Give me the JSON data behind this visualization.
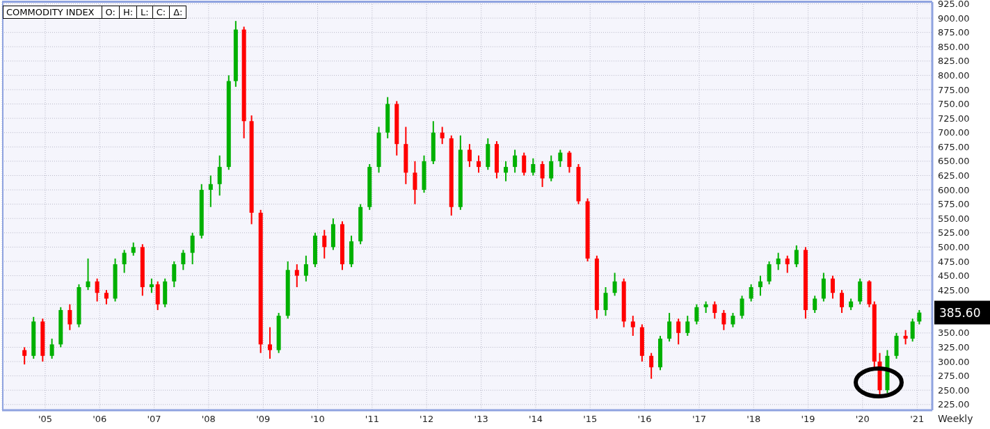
{
  "chart_data": {
    "type": "candlestick",
    "title": "COMMODITY INDEX",
    "annotations": [
      "O:",
      "H:",
      "L:",
      "C:",
      "Δ:",
      "Weekly",
      {
        "text": "385.60",
        "x": "2021-01-15",
        "y": 385.6
      }
    ],
    "x": [
      "2004-08-15",
      "2004-10-15",
      "2004-12-15",
      "2005-02-15",
      "2005-04-15",
      "2005-06-15",
      "2005-08-15",
      "2005-10-15",
      "2005-12-15",
      "2006-02-15",
      "2006-04-15",
      "2006-06-15",
      "2006-08-15",
      "2006-10-15",
      "2006-12-15",
      "2007-01-25",
      "2007-03-15",
      "2007-05-15",
      "2007-07-15",
      "2007-09-15",
      "2007-11-15",
      "2008-01-15",
      "2008-03-15",
      "2008-05-15",
      "2008-07-01",
      "2008-08-25",
      "2008-10-15",
      "2008-12-15",
      "2009-02-15",
      "2009-04-15",
      "2009-06-15",
      "2009-08-15",
      "2009-10-15",
      "2009-12-15",
      "2010-02-15",
      "2010-04-15",
      "2010-06-15",
      "2010-08-15",
      "2010-10-15",
      "2010-12-15",
      "2011-02-15",
      "2011-04-15",
      "2011-06-15",
      "2011-08-15",
      "2011-10-15",
      "2011-12-15",
      "2012-02-15",
      "2012-04-15",
      "2012-06-15",
      "2012-08-15",
      "2012-10-15",
      "2012-12-15",
      "2013-02-15",
      "2013-04-15",
      "2013-06-15",
      "2013-08-15",
      "2013-10-15",
      "2013-12-15",
      "2014-02-15",
      "2014-04-15",
      "2014-06-15",
      "2014-08-15",
      "2014-10-15",
      "2014-12-15",
      "2015-02-15",
      "2015-04-15",
      "2015-06-15",
      "2015-08-15",
      "2015-10-15",
      "2015-12-15",
      "2016-02-15",
      "2016-04-15",
      "2016-06-15",
      "2016-08-15",
      "2016-10-15",
      "2016-12-15",
      "2017-02-15",
      "2017-04-15",
      "2017-06-15",
      "2017-08-15",
      "2017-10-15",
      "2017-12-15",
      "2018-02-15",
      "2018-04-15",
      "2018-06-15",
      "2018-08-15",
      "2018-10-15",
      "2018-12-15",
      "2019-02-15",
      "2019-04-15",
      "2019-06-15",
      "2019-08-15",
      "2019-10-15",
      "2019-12-15",
      "2020-02-15",
      "2020-03-20",
      "2020-04-25",
      "2020-06-15",
      "2020-08-15",
      "2020-10-15",
      "2020-12-01",
      "2021-01-15"
    ],
    "ohlc": [
      [
        320,
        325,
        295,
        310
      ],
      [
        310,
        378,
        305,
        370
      ],
      [
        370,
        375,
        300,
        310
      ],
      [
        310,
        340,
        305,
        330
      ],
      [
        330,
        395,
        325,
        390
      ],
      [
        390,
        400,
        355,
        365
      ],
      [
        365,
        435,
        360,
        430
      ],
      [
        430,
        480,
        425,
        440
      ],
      [
        440,
        445,
        405,
        420
      ],
      [
        420,
        425,
        400,
        410
      ],
      [
        410,
        480,
        405,
        470
      ],
      [
        470,
        495,
        455,
        490
      ],
      [
        490,
        508,
        485,
        500
      ],
      [
        500,
        505,
        415,
        430
      ],
      [
        430,
        445,
        420,
        435
      ],
      [
        435,
        440,
        390,
        400
      ],
      [
        400,
        445,
        395,
        440
      ],
      [
        440,
        475,
        430,
        470
      ],
      [
        470,
        495,
        460,
        490
      ],
      [
        490,
        525,
        470,
        520
      ],
      [
        520,
        610,
        515,
        600
      ],
      [
        600,
        625,
        570,
        610
      ],
      [
        610,
        660,
        590,
        640
      ],
      [
        640,
        800,
        635,
        790
      ],
      [
        790,
        895,
        780,
        880
      ],
      [
        880,
        885,
        690,
        720
      ],
      [
        720,
        730,
        540,
        560
      ],
      [
        560,
        565,
        315,
        330
      ],
      [
        330,
        360,
        305,
        320
      ],
      [
        320,
        385,
        315,
        380
      ],
      [
        380,
        475,
        375,
        460
      ],
      [
        460,
        470,
        430,
        450
      ],
      [
        450,
        485,
        440,
        470
      ],
      [
        470,
        525,
        465,
        520
      ],
      [
        520,
        530,
        480,
        500
      ],
      [
        500,
        550,
        495,
        540
      ],
      [
        540,
        545,
        460,
        470
      ],
      [
        470,
        520,
        465,
        510
      ],
      [
        510,
        575,
        505,
        570
      ],
      [
        570,
        645,
        565,
        640
      ],
      [
        640,
        710,
        630,
        700
      ],
      [
        700,
        762,
        690,
        750
      ],
      [
        750,
        755,
        660,
        680
      ],
      [
        680,
        710,
        610,
        630
      ],
      [
        630,
        650,
        575,
        600
      ],
      [
        600,
        660,
        595,
        650
      ],
      [
        650,
        720,
        645,
        700
      ],
      [
        700,
        710,
        680,
        690
      ],
      [
        690,
        695,
        555,
        570
      ],
      [
        570,
        695,
        565,
        670
      ],
      [
        670,
        680,
        640,
        650
      ],
      [
        650,
        660,
        630,
        640
      ],
      [
        640,
        690,
        635,
        680
      ],
      [
        680,
        685,
        620,
        630
      ],
      [
        630,
        650,
        615,
        640
      ],
      [
        640,
        670,
        630,
        660
      ],
      [
        660,
        665,
        625,
        630
      ],
      [
        630,
        655,
        625,
        645
      ],
      [
        645,
        650,
        605,
        620
      ],
      [
        620,
        660,
        615,
        650
      ],
      [
        650,
        670,
        640,
        665
      ],
      [
        665,
        668,
        630,
        640
      ],
      [
        640,
        645,
        575,
        580
      ],
      [
        580,
        585,
        475,
        480
      ],
      [
        480,
        485,
        375,
        390
      ],
      [
        390,
        430,
        380,
        420
      ],
      [
        420,
        455,
        415,
        440
      ],
      [
        440,
        445,
        360,
        370
      ],
      [
        370,
        380,
        345,
        360
      ],
      [
        360,
        365,
        300,
        310
      ],
      [
        310,
        315,
        270,
        290
      ],
      [
        290,
        345,
        285,
        340
      ],
      [
        340,
        385,
        335,
        370
      ],
      [
        370,
        375,
        330,
        350
      ],
      [
        350,
        380,
        345,
        370
      ],
      [
        370,
        400,
        365,
        395
      ],
      [
        395,
        405,
        385,
        400
      ],
      [
        400,
        405,
        375,
        385
      ],
      [
        385,
        390,
        355,
        365
      ],
      [
        365,
        385,
        360,
        380
      ],
      [
        380,
        415,
        375,
        410
      ],
      [
        410,
        435,
        405,
        430
      ],
      [
        430,
        450,
        415,
        440
      ],
      [
        440,
        475,
        435,
        470
      ],
      [
        470,
        490,
        460,
        480
      ],
      [
        480,
        485,
        455,
        470
      ],
      [
        470,
        503,
        465,
        495
      ],
      [
        495,
        500,
        375,
        390
      ],
      [
        390,
        415,
        385,
        410
      ],
      [
        410,
        455,
        405,
        445
      ],
      [
        445,
        450,
        410,
        420
      ],
      [
        420,
        425,
        385,
        395
      ],
      [
        395,
        410,
        390,
        405
      ],
      [
        405,
        445,
        400,
        440
      ],
      [
        440,
        442,
        395,
        400
      ],
      [
        400,
        405,
        290,
        300
      ],
      [
        300,
        315,
        240,
        250
      ],
      [
        250,
        320,
        245,
        310
      ],
      [
        310,
        350,
        305,
        345
      ],
      [
        345,
        355,
        330,
        340
      ],
      [
        340,
        375,
        335,
        370
      ],
      [
        370,
        390,
        365,
        385.6
      ]
    ],
    "colors": [
      "#ff0000",
      "#00b000",
      "#ff0000",
      "#00b000",
      "#00b000",
      "#ff0000",
      "#00b000",
      "#00b000",
      "#ff0000",
      "#ff0000",
      "#00b000",
      "#00b000",
      "#00b000",
      "#ff0000",
      "#00b000",
      "#ff0000",
      "#00b000",
      "#00b000",
      "#00b000",
      "#00b000",
      "#00b000",
      "#00b000",
      "#00b000",
      "#00b000",
      "#00b000",
      "#ff0000",
      "#ff0000",
      "#ff0000",
      "#ff0000",
      "#00b000",
      "#00b000",
      "#ff0000",
      "#00b000",
      "#00b000",
      "#ff0000",
      "#00b000",
      "#ff0000",
      "#00b000",
      "#00b000",
      "#00b000",
      "#00b000",
      "#00b000",
      "#ff0000",
      "#ff0000",
      "#ff0000",
      "#00b000",
      "#00b000",
      "#ff0000",
      "#ff0000",
      "#00b000",
      "#ff0000",
      "#ff0000",
      "#00b000",
      "#ff0000",
      "#00b000",
      "#00b000",
      "#ff0000",
      "#00b000",
      "#ff0000",
      "#00b000",
      "#00b000",
      "#ff0000",
      "#ff0000",
      "#ff0000",
      "#ff0000",
      "#00b000",
      "#00b000",
      "#ff0000",
      "#ff0000",
      "#ff0000",
      "#ff0000",
      "#00b000",
      "#00b000",
      "#ff0000",
      "#00b000",
      "#00b000",
      "#00b000",
      "#ff0000",
      "#ff0000",
      "#00b000",
      "#00b000",
      "#00b000",
      "#00b000",
      "#00b000",
      "#00b000",
      "#ff0000",
      "#00b000",
      "#ff0000",
      "#00b000",
      "#00b000",
      "#ff0000",
      "#ff0000",
      "#00b000",
      "#00b000",
      "#ff0000",
      "#ff0000",
      "#ff0000",
      "#00b000",
      "#00b000",
      "#ff0000",
      "#00b000",
      "#00b000"
    ],
    "xlim": [
      "2004-03-18",
      "2021-04-12"
    ],
    "xticks": [
      {
        "value": "2005-01-01",
        "label": "'05"
      },
      {
        "value": "2006-01-01",
        "label": "'06"
      },
      {
        "value": "2007-01-01",
        "label": "'07"
      },
      {
        "value": "2008-01-01",
        "label": "'08"
      },
      {
        "value": "2009-01-01",
        "label": "'09"
      },
      {
        "value": "2010-01-01",
        "label": "'10"
      },
      {
        "value": "2011-01-01",
        "label": "'11"
      },
      {
        "value": "2012-01-01",
        "label": "'12"
      },
      {
        "value": "2013-01-01",
        "label": "'13"
      },
      {
        "value": "2014-01-01",
        "label": "'14"
      },
      {
        "value": "2015-01-01",
        "label": "'15"
      },
      {
        "value": "2016-01-01",
        "label": "'16"
      },
      {
        "value": "2017-01-01",
        "label": "'17"
      },
      {
        "value": "2018-01-01",
        "label": "'18"
      },
      {
        "value": "2019-01-01",
        "label": "'19"
      },
      {
        "value": "2020-01-01",
        "label": "'20"
      },
      {
        "value": "2021-01-01",
        "label": "'21"
      }
    ],
    "ylim": [
      215,
      928
    ],
    "yticks": [
      {
        "value": 225,
        "label": "225.00"
      },
      {
        "value": 250,
        "label": "250.00"
      },
      {
        "value": 275,
        "label": "275.00"
      },
      {
        "value": 300,
        "label": "300.00"
      },
      {
        "value": 325,
        "label": "325.00"
      },
      {
        "value": 350,
        "label": "350.00"
      },
      {
        "value": 375,
        "label": null
      },
      {
        "value": 400,
        "label": null
      },
      {
        "value": 425,
        "label": "425.00"
      },
      {
        "value": 450,
        "label": "450.00"
      },
      {
        "value": 475,
        "label": "475.00"
      },
      {
        "value": 500,
        "label": "500.00"
      },
      {
        "value": 525,
        "label": "525.00"
      },
      {
        "value": 550,
        "label": "550.00"
      },
      {
        "value": 575,
        "label": "575.00"
      },
      {
        "value": 600,
        "label": "600.00"
      },
      {
        "value": 625,
        "label": "625.00"
      },
      {
        "value": 650,
        "label": "650.00"
      },
      {
        "value": 675,
        "label": "675.00"
      },
      {
        "value": 700,
        "label": "700.00"
      },
      {
        "value": 725,
        "label": "725.00"
      },
      {
        "value": 750,
        "label": "750.00"
      },
      {
        "value": 775,
        "label": "775.00"
      },
      {
        "value": 800,
        "label": "800.00"
      },
      {
        "value": 825,
        "label": "825.00"
      },
      {
        "value": 850,
        "label": "850.00"
      },
      {
        "value": 875,
        "label": "875.00"
      },
      {
        "value": 900,
        "label": "900.00"
      },
      {
        "value": 925,
        "label": "925.00"
      }
    ],
    "grid": true
  }
}
